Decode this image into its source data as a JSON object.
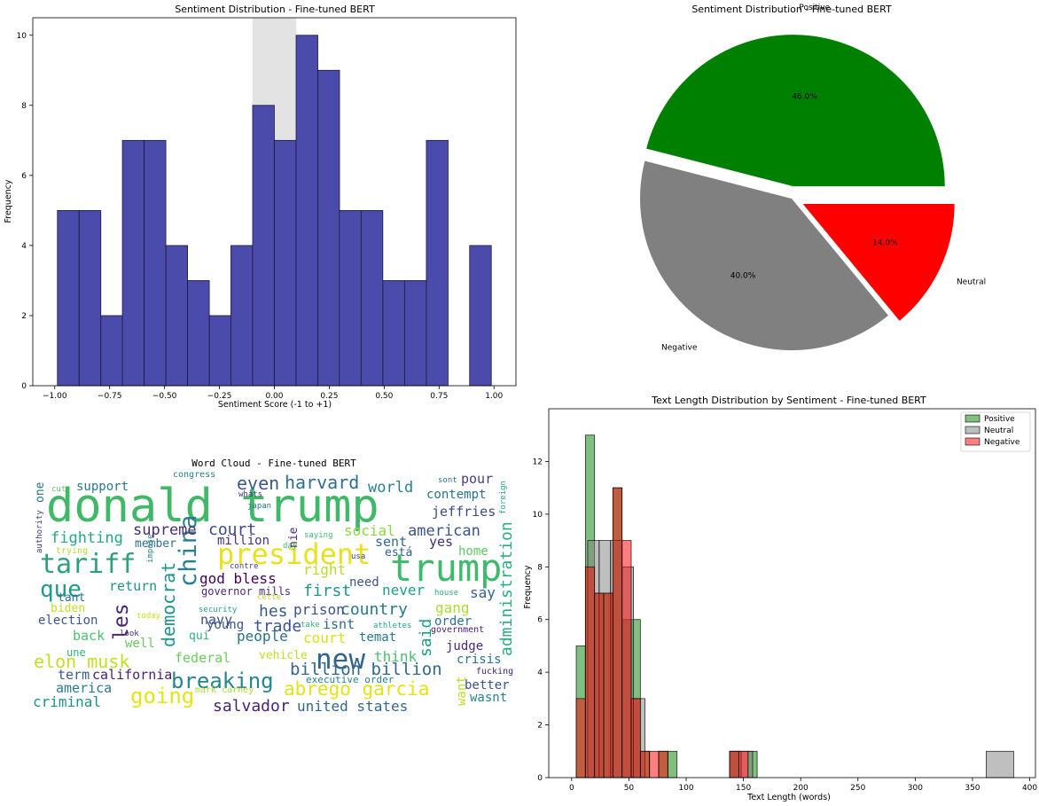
{
  "colors": {
    "hist_fill": "#4b4bab",
    "hist_edge": "#1a1a3a",
    "neutral_band": "#e3e3e3",
    "positive": "#008000",
    "neutral": "#808080",
    "negative": "#ff0000"
  },
  "chart_data": [
    {
      "type": "bar",
      "title": "Sentiment Distribution - Fine-tuned BERT",
      "xlabel": "Sentiment Score (-1 to +1)",
      "ylabel": "Frequency",
      "xlim": [
        -1.1,
        1.1
      ],
      "ylim": [
        0,
        10.5
      ],
      "xticks": [
        -1.0,
        -0.75,
        -0.5,
        -0.25,
        0.0,
        0.25,
        0.5,
        0.75,
        1.0
      ],
      "xtick_labels": [
        "−1.00",
        "−0.75",
        "−0.50",
        "−0.25",
        "0.00",
        "0.25",
        "0.50",
        "0.75",
        "1.00"
      ],
      "yticks": [
        0,
        2,
        4,
        6,
        8,
        10
      ],
      "neutral_band": [
        -0.1,
        0.1
      ],
      "bin_width": 0.0988,
      "bins": [
        {
          "x": -0.988,
          "count": 5
        },
        {
          "x": -0.889,
          "count": 5
        },
        {
          "x": -0.79,
          "count": 2
        },
        {
          "x": -0.692,
          "count": 7
        },
        {
          "x": -0.593,
          "count": 7
        },
        {
          "x": -0.494,
          "count": 4
        },
        {
          "x": -0.395,
          "count": 3
        },
        {
          "x": -0.296,
          "count": 2
        },
        {
          "x": -0.198,
          "count": 4
        },
        {
          "x": -0.099,
          "count": 8
        },
        {
          "x": 0.0,
          "count": 7
        },
        {
          "x": 0.099,
          "count": 10
        },
        {
          "x": 0.198,
          "count": 9
        },
        {
          "x": 0.296,
          "count": 5
        },
        {
          "x": 0.395,
          "count": 5
        },
        {
          "x": 0.494,
          "count": 3
        },
        {
          "x": 0.593,
          "count": 3
        },
        {
          "x": 0.692,
          "count": 7
        },
        {
          "x": 0.889,
          "count": 4
        }
      ]
    },
    {
      "type": "pie",
      "title": "Sentiment Distribution - Fine-tuned BERT",
      "slices": [
        {
          "label": "Positive",
          "value": 46.0,
          "pct": "46.0%",
          "color": "#008000"
        },
        {
          "label": "Negative",
          "value": 40.0,
          "pct": "40.0%",
          "color": "#808080"
        },
        {
          "label": "Neutral",
          "value": 14.0,
          "pct": "14.0%",
          "color": "#ff0000"
        }
      ]
    },
    {
      "type": "histogram",
      "title": "Text Length Distribution by Sentiment - Fine-tuned BERT",
      "xlabel": "Text Length (words)",
      "ylabel": "Frequency",
      "xlim": [
        -20,
        405
      ],
      "ylim": [
        0,
        14
      ],
      "xticks": [
        0,
        50,
        100,
        150,
        200,
        250,
        300,
        350,
        400
      ],
      "yticks": [
        0,
        2,
        4,
        6,
        8,
        10,
        12
      ],
      "legend_position": "top-right",
      "series": [
        {
          "name": "Positive",
          "color": "#008000",
          "bins": [
            {
              "x0": 4,
              "x1": 12,
              "count": 5
            },
            {
              "x0": 12,
              "x1": 20,
              "count": 13
            },
            {
              "x0": 20,
              "x1": 28,
              "count": 7
            },
            {
              "x0": 28,
              "x1": 36,
              "count": 7
            },
            {
              "x0": 36,
              "x1": 44,
              "count": 11
            },
            {
              "x0": 44,
              "x1": 52,
              "count": 6
            },
            {
              "x0": 52,
              "x1": 60,
              "count": 6
            },
            {
              "x0": 60,
              "x1": 68,
              "count": 1
            },
            {
              "x0": 76,
              "x1": 84,
              "count": 1
            },
            {
              "x0": 84,
              "x1": 92,
              "count": 1
            },
            {
              "x0": 138,
              "x1": 146,
              "count": 1
            },
            {
              "x0": 154,
              "x1": 162,
              "count": 1
            }
          ]
        },
        {
          "name": "Neutral",
          "color": "#808080",
          "bins": [
            {
              "x0": 14,
              "x1": 24,
              "count": 9
            },
            {
              "x0": 24,
              "x1": 34,
              "count": 9
            },
            {
              "x0": 34,
              "x1": 44,
              "count": 9
            },
            {
              "x0": 44,
              "x1": 54,
              "count": 8
            },
            {
              "x0": 54,
              "x1": 64,
              "count": 3
            },
            {
              "x0": 138,
              "x1": 148,
              "count": 1
            },
            {
              "x0": 148,
              "x1": 158,
              "count": 1
            },
            {
              "x0": 362,
              "x1": 386,
              "count": 1
            }
          ]
        },
        {
          "name": "Negative",
          "color": "#ff0000",
          "bins": [
            {
              "x0": 4,
              "x1": 12,
              "count": 3
            },
            {
              "x0": 12,
              "x1": 20,
              "count": 8
            },
            {
              "x0": 20,
              "x1": 28,
              "count": 7
            },
            {
              "x0": 28,
              "x1": 36,
              "count": 7
            },
            {
              "x0": 36,
              "x1": 44,
              "count": 11
            },
            {
              "x0": 44,
              "x1": 52,
              "count": 9
            },
            {
              "x0": 52,
              "x1": 60,
              "count": 3
            },
            {
              "x0": 60,
              "x1": 68,
              "count": 1
            },
            {
              "x0": 68,
              "x1": 76,
              "count": 1
            },
            {
              "x0": 76,
              "x1": 84,
              "count": 1
            },
            {
              "x0": 138,
              "x1": 146,
              "count": 1
            },
            {
              "x0": 146,
              "x1": 154,
              "count": 1
            }
          ]
        }
      ]
    },
    {
      "type": "wordcloud",
      "title": "Word Cloud - Fine-tuned BERT",
      "words": [
        {
          "text": "donald trump",
          "color": "#3fb867"
        },
        {
          "text": "trump",
          "color": "#3dba6b"
        },
        {
          "text": "president",
          "color": "#e8e11f"
        },
        {
          "text": "tariff",
          "color": "#2ea07a"
        },
        {
          "text": "que",
          "color": "#1f9a8a"
        },
        {
          "text": "china",
          "color": "#2b7f8d"
        },
        {
          "text": "new",
          "color": "#32648e"
        },
        {
          "text": "breaking",
          "color": "#24868e"
        },
        {
          "text": "elon musk",
          "color": "#c2df23"
        },
        {
          "text": "abrego garcia",
          "color": "#e2e418"
        },
        {
          "text": "billion billion",
          "color": "#31688e"
        },
        {
          "text": "administration",
          "color": "#29af7f"
        },
        {
          "text": "salvador",
          "color": "#482576"
        },
        {
          "text": "united states",
          "color": "#31688e"
        },
        {
          "text": "going",
          "color": "#e5e419"
        },
        {
          "text": "harvard",
          "color": "#2d708e"
        },
        {
          "text": "even",
          "color": "#38588c"
        },
        {
          "text": "world",
          "color": "#26828e"
        },
        {
          "text": "court",
          "color": "#3e4a89"
        },
        {
          "text": "supreme",
          "color": "#472d7b"
        },
        {
          "text": "fighting",
          "color": "#22a884"
        },
        {
          "text": "support",
          "color": "#2a788e"
        },
        {
          "text": "american",
          "color": "#3b528b"
        },
        {
          "text": "jeffries",
          "color": "#3e4a89"
        },
        {
          "text": "contempt",
          "color": "#2c728e"
        },
        {
          "text": "pour",
          "color": "#433e85"
        },
        {
          "text": "social",
          "color": "#8fd744"
        },
        {
          "text": "sent",
          "color": "#2f6c8e"
        },
        {
          "text": "yes",
          "color": "#472c7a"
        },
        {
          "text": "home",
          "color": "#5ec962"
        },
        {
          "text": "está",
          "color": "#34618d"
        },
        {
          "text": "million",
          "color": "#46327e"
        },
        {
          "text": "member",
          "color": "#2e6e8e"
        },
        {
          "text": "right",
          "color": "#b5de2b"
        },
        {
          "text": "god bless",
          "color": "#440154"
        },
        {
          "text": "governor mills",
          "color": "#482878"
        },
        {
          "text": "first",
          "color": "#1f968b"
        },
        {
          "text": "need",
          "color": "#39568c"
        },
        {
          "text": "never",
          "color": "#1fa088"
        },
        {
          "text": "say",
          "color": "#355f8d"
        },
        {
          "text": "return",
          "color": "#20928c"
        },
        {
          "text": "les",
          "color": "#482475"
        },
        {
          "text": "democrat",
          "color": "#1f948c"
        },
        {
          "text": "country",
          "color": "#2a778e"
        },
        {
          "text": "hes",
          "color": "#38598c"
        },
        {
          "text": "prison",
          "color": "#3b528b"
        },
        {
          "text": "gang",
          "color": "#addc30"
        },
        {
          "text": "order",
          "color": "#2c728e"
        },
        {
          "text": "said",
          "color": "#1f9e89"
        },
        {
          "text": "election",
          "color": "#3b528b"
        },
        {
          "text": "biden",
          "color": "#c0df25"
        },
        {
          "text": "tant",
          "color": "#2c738e"
        },
        {
          "text": "navy",
          "color": "#3e4989"
        },
        {
          "text": "young",
          "color": "#3a548c"
        },
        {
          "text": "trade",
          "color": "#3b528b"
        },
        {
          "text": "isnt",
          "color": "#31688e"
        },
        {
          "text": "temat",
          "color": "#2a768e"
        },
        {
          "text": "back",
          "color": "#4cc26c"
        },
        {
          "text": "well",
          "color": "#63cb5f"
        },
        {
          "text": "people",
          "color": "#2d718e"
        },
        {
          "text": "court",
          "color": "#d8e219"
        },
        {
          "text": "think",
          "color": "#4ac16d"
        },
        {
          "text": "judge",
          "color": "#482979"
        },
        {
          "text": "crisis",
          "color": "#2d708e"
        },
        {
          "text": "federal",
          "color": "#6ccd5a"
        },
        {
          "text": "vehicle",
          "color": "#c2df23"
        },
        {
          "text": "california",
          "color": "#481f70"
        },
        {
          "text": "america",
          "color": "#287c8e"
        },
        {
          "text": "criminal",
          "color": "#21908d"
        },
        {
          "text": "better",
          "color": "#3b528b"
        },
        {
          "text": "wasnt",
          "color": "#26828e"
        },
        {
          "text": "want",
          "color": "#bddf26"
        },
        {
          "text": "qui",
          "color": "#2eb37c"
        },
        {
          "text": "une",
          "color": "#2fb47c"
        },
        {
          "text": "term",
          "color": "#365d8d"
        },
        {
          "text": "one",
          "color": "#2c718e"
        },
        {
          "text": "congress",
          "color": "#277f8e"
        },
        {
          "text": "cut",
          "color": "#5ec962"
        },
        {
          "text": "whats",
          "color": "#472f7d"
        },
        {
          "text": "japan",
          "color": "#2d708e"
        },
        {
          "text": "saying",
          "color": "#3dbc74"
        },
        {
          "text": "usa",
          "color": "#3f4788"
        },
        {
          "text": "contre",
          "color": "#414487"
        },
        {
          "text": "day",
          "color": "#40bd72"
        },
        {
          "text": "cette",
          "color": "#b8de29"
        },
        {
          "text": "security",
          "color": "#21a685"
        },
        {
          "text": "today",
          "color": "#c8e020"
        },
        {
          "text": "look",
          "color": "#472a7a"
        },
        {
          "text": "take",
          "color": "#32b67a"
        },
        {
          "text": "athletes",
          "color": "#22a785"
        },
        {
          "text": "government",
          "color": "#482173"
        },
        {
          "text": "house",
          "color": "#2ab07f"
        },
        {
          "text": "executive order",
          "color": "#26818e"
        },
        {
          "text": "mark carney",
          "color": "#a8db34"
        },
        {
          "text": "fucking",
          "color": "#481c6e"
        },
        {
          "text": "trying",
          "color": "#b0dd2f"
        },
        {
          "text": "authority",
          "color": "#46337f"
        },
        {
          "text": "impose",
          "color": "#24868e"
        },
        {
          "text": "nie",
          "color": "#482878"
        },
        {
          "text": "sont",
          "color": "#2a778e"
        },
        {
          "text": "foreign",
          "color": "#25ab82"
        }
      ]
    }
  ]
}
